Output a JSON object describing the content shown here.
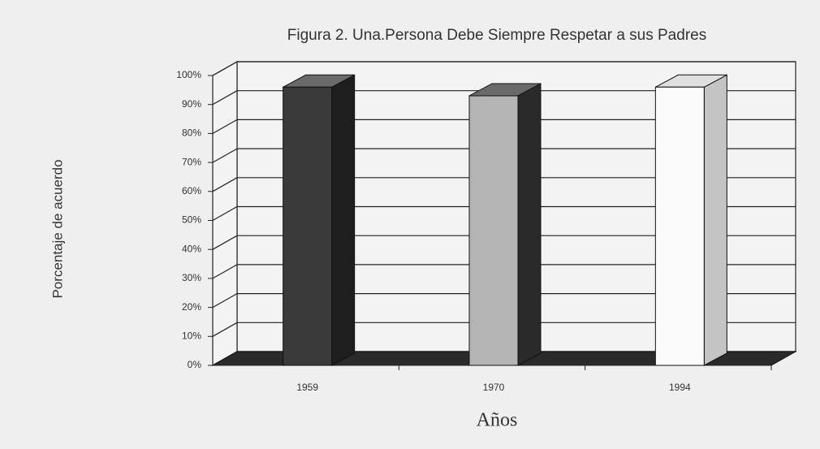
{
  "chart_data": {
    "type": "bar3d",
    "title": "Figura 2. Una.Persona Debe Siempre Respetar a sus Padres",
    "y_label": "Porcentaje de acuerdo",
    "x_label": "Años",
    "categories": [
      "1959",
      "1970",
      "1994"
    ],
    "values": [
      96,
      93,
      96
    ],
    "colors": [
      "#3a3a3a",
      "#b4b4b4",
      "#fbfbfb"
    ],
    "side_colors": [
      "#1e1e1e",
      "#2a2a2a",
      "#c4c4c4"
    ],
    "ylim": [
      0,
      100
    ],
    "yticks": [
      {
        "value": 0,
        "label": "0%"
      },
      {
        "value": 10,
        "label": "10%"
      },
      {
        "value": 20,
        "label": "20%"
      },
      {
        "value": 30,
        "label": "30%"
      },
      {
        "value": 40,
        "label": "40%"
      },
      {
        "value": 50,
        "label": "50%"
      },
      {
        "value": 60,
        "label": "60%"
      },
      {
        "value": 70,
        "label": "70%"
      },
      {
        "value": 80,
        "label": "80%"
      },
      {
        "value": 90,
        "label": "90%"
      },
      {
        "value": 100,
        "label": "100%"
      }
    ],
    "grid": true
  }
}
